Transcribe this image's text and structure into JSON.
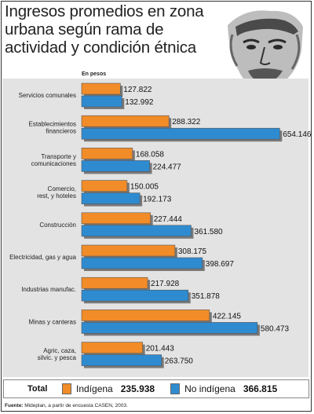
{
  "title": "Ingresos promedios en zona urbana según rama de actividad y condición étnica",
  "unit_label": "En pesos",
  "colors": {
    "indigena": "#f28c28",
    "no_indigena": "#2f8bd0",
    "panel": "#e3e3e3"
  },
  "chart_data": {
    "type": "bar",
    "orientation": "horizontal",
    "categories": [
      "Servicios comunales",
      "Establecimientos financieros",
      "Transporte y comunicaciones",
      "Comercio, rest, y hoteles",
      "Construcción",
      "Electricidad, gas y agua",
      "Industrias manufac.",
      "Minas y canteras",
      "Agric, caza, silvic. y pesca"
    ],
    "category_lines": [
      [
        "Servicios comunales"
      ],
      [
        "Establecimientos",
        "financieros"
      ],
      [
        "Transporte y",
        "comunicaciones"
      ],
      [
        "Comercio,",
        "rest, y hoteles"
      ],
      [
        "Construcción"
      ],
      [
        "Electricidad, gas y agua"
      ],
      [
        "Industrias manufac."
      ],
      [
        "Minas y canteras"
      ],
      [
        "Agric, caza,",
        "silvic. y pesca"
      ]
    ],
    "series": [
      {
        "name": "Indígena",
        "values": [
          127822,
          288322,
          168058,
          150005,
          227444,
          308175,
          217928,
          422145,
          201443
        ],
        "labels": [
          "127.822",
          "288.322",
          "168.058",
          "150.005",
          "227.444",
          "308.175",
          "217.928",
          "422.145",
          "201.443"
        ]
      },
      {
        "name": "No indígena",
        "values": [
          132992,
          654146,
          224477,
          192173,
          361580,
          398697,
          351878,
          580473,
          263750
        ],
        "labels": [
          "132.992",
          "654.146",
          "224.477",
          "192.173",
          "361.580",
          "398.697",
          "351.878",
          "580.473",
          "263.750"
        ]
      }
    ],
    "xlim": [
      0,
      700000
    ],
    "grid": false,
    "legend": "bottom"
  },
  "totals": {
    "label": "Total",
    "indigena_name": "Indígena",
    "indigena_value": "235.938",
    "no_indigena_name": "No indígena",
    "no_indigena_value": "366.815"
  },
  "source": {
    "bold": "Fuente:",
    "text": " Mideplan, a partir de encuesta CASEN, 2003."
  }
}
